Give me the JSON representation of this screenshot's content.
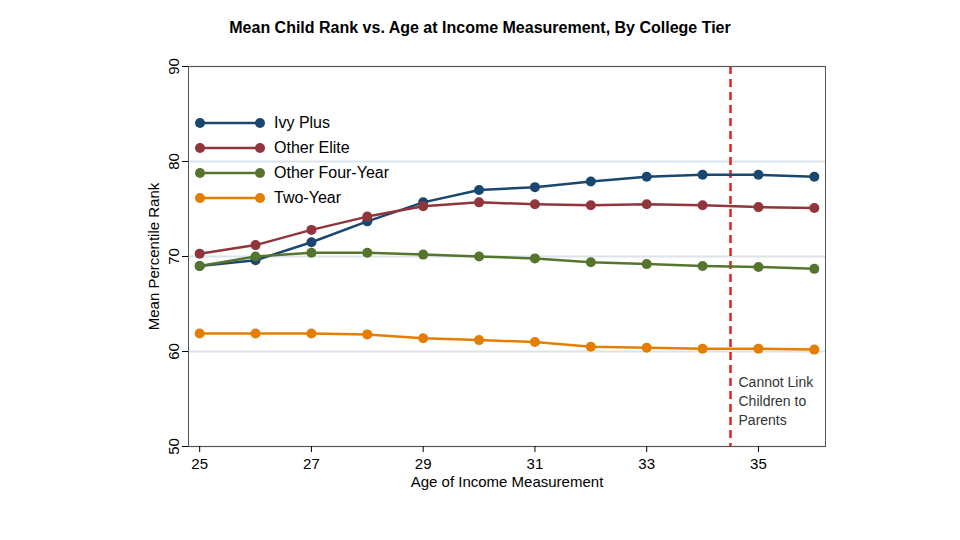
{
  "chart_data": {
    "type": "line",
    "title": "Mean Child Rank vs. Age at Income Measurement, By College Tier",
    "x_label": "Age of Income Measurement",
    "y_label": "Mean Percentile Rank",
    "x": [
      25,
      26,
      27,
      28,
      29,
      30,
      31,
      32,
      33,
      34,
      35,
      36
    ],
    "series": [
      {
        "name": "Ivy Plus",
        "color": "#1a476f",
        "values": [
          69.0,
          69.6,
          71.5,
          73.7,
          75.7,
          77.0,
          77.3,
          77.9,
          78.4,
          78.6,
          78.6,
          78.4
        ]
      },
      {
        "name": "Other Elite",
        "color": "#90353b",
        "values": [
          70.3,
          71.2,
          72.8,
          74.2,
          75.3,
          75.7,
          75.5,
          75.4,
          75.5,
          75.4,
          75.2,
          75.1
        ]
      },
      {
        "name": "Other Four-Year",
        "color": "#55752f",
        "values": [
          69.0,
          70.0,
          70.4,
          70.4,
          70.2,
          70.0,
          69.8,
          69.4,
          69.2,
          69.0,
          68.9,
          68.7
        ]
      },
      {
        "name": "Two-Year",
        "color": "#e37e00",
        "values": [
          61.9,
          61.9,
          61.9,
          61.8,
          61.4,
          61.2,
          61.0,
          60.5,
          60.4,
          60.3,
          60.3,
          60.2
        ]
      }
    ],
    "xlim": [
      24.8,
      36.2
    ],
    "xticks": [
      25,
      27,
      29,
      31,
      33,
      35
    ],
    "ylim": [
      50,
      90
    ],
    "yticks": [
      50,
      60,
      70,
      80,
      90
    ],
    "grid": true,
    "legend": "upper left",
    "marker": "circle",
    "annotations": [
      {
        "x": 34.5,
        "color": "#e8211b",
        "line_style": "dashed",
        "text": [
          "Cannot Link",
          "Children to",
          "Parents"
        ]
      }
    ]
  }
}
